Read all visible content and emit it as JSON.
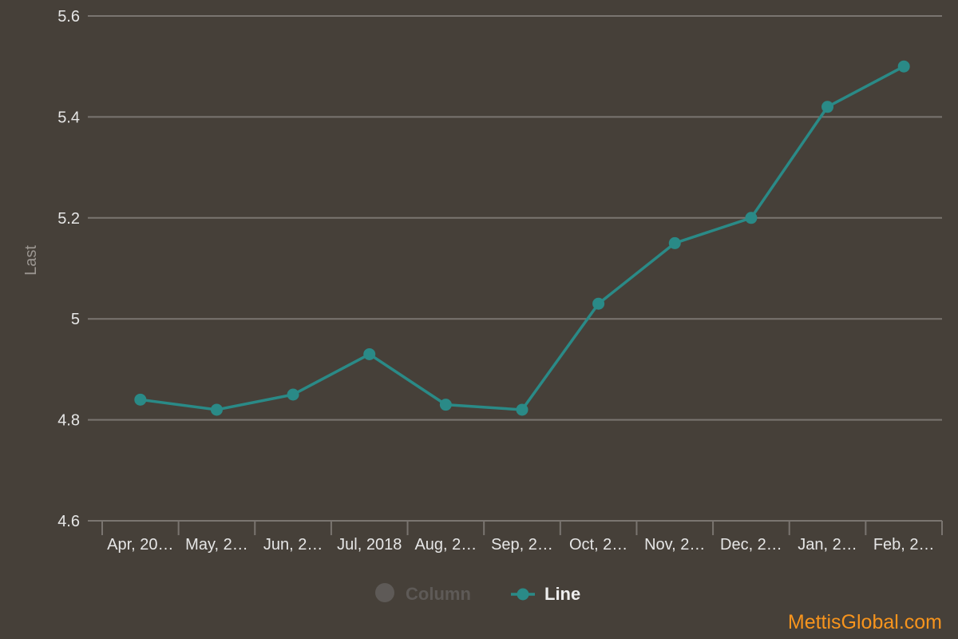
{
  "chart_data": {
    "type": "line",
    "categories": [
      "Apr, 20…",
      "May, 2…",
      "Jun, 2…",
      "Jul, 2018",
      "Aug, 2…",
      "Sep, 2…",
      "Oct, 2…",
      "Nov, 2…",
      "Dec, 2…",
      "Jan, 2…",
      "Feb, 2…"
    ],
    "series": [
      {
        "name": "Line",
        "values": [
          4.84,
          4.82,
          4.85,
          4.93,
          4.83,
          4.82,
          5.03,
          5.15,
          5.2,
          5.42,
          5.5
        ],
        "color": "#2a8a87"
      }
    ],
    "ylabel": "Last",
    "xlabel": "",
    "ylim": [
      4.6,
      5.6
    ],
    "yticks": [
      "4.6",
      "4.8",
      "5",
      "5.2",
      "5.4",
      "5.6"
    ],
    "grid": true,
    "legend": {
      "placement": "bottom",
      "items": [
        {
          "label": "Column",
          "active": false,
          "color": "#5e5a57",
          "icon": "circle-icon"
        },
        {
          "label": "Line",
          "active": true,
          "color": "#2a8a87",
          "icon": "line-marker-icon"
        }
      ]
    }
  },
  "colors": {
    "background": "#464039",
    "grid": "#7a7570",
    "axis_text": "#e6e6e6",
    "ylabel": "#9b9691",
    "legend_inactive": "#5e5a57",
    "legend_active_text": "#eeeeee",
    "watermark": "#f7941d"
  },
  "watermark": "MettisGlobal.com"
}
